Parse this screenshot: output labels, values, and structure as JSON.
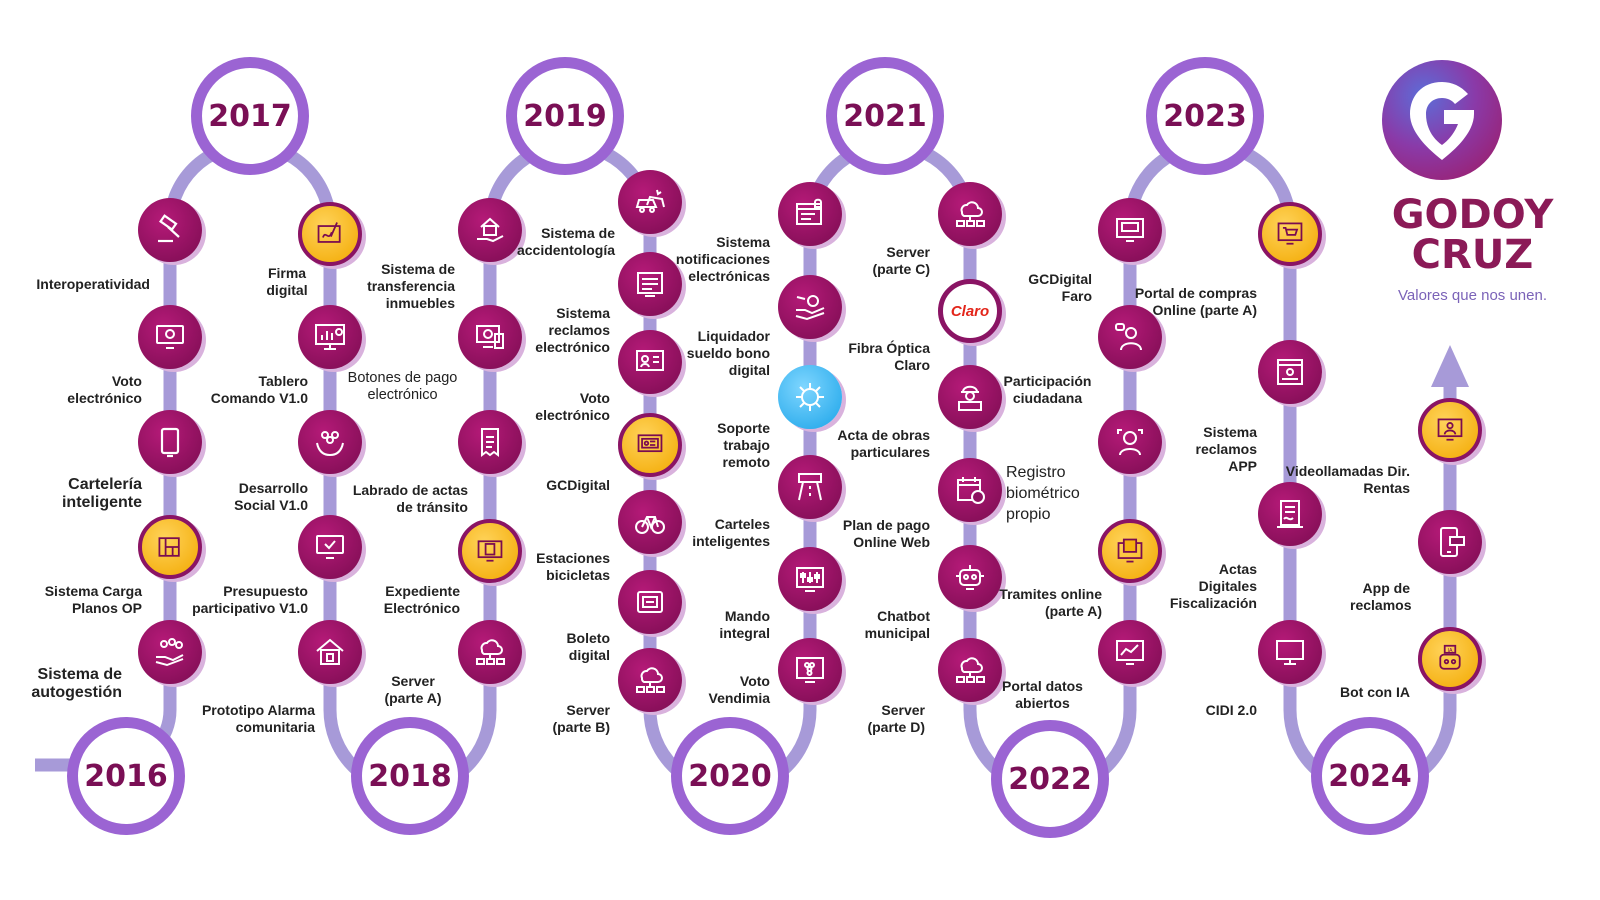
{
  "years": [
    "2016",
    "2017",
    "2018",
    "2019",
    "2020",
    "2021",
    "2022",
    "2023",
    "2024"
  ],
  "logo": {
    "name_line1": "GODOY",
    "name_line2": "CRUZ",
    "tagline": "Valores que nos unen."
  },
  "colors": {
    "track": "#a79ad8",
    "year_ring": "#9b64d3",
    "year_text": "#7a0f55",
    "node_magenta": "#8d1260",
    "node_yellow": "#f5b20e",
    "node_blue": "#2aaae8",
    "brand": "#8b1a57"
  },
  "milestones": {
    "m1": "Sistema de autogestión",
    "m2": "Sistema Carga Planos OP",
    "m3": "Cartelería inteligente",
    "m4": "Voto electrónico",
    "m5": "Interoperatividad",
    "m6": "Firma digital",
    "m7": "Tablero Comando V1.0",
    "m8": "Desarrollo Social V1.0",
    "m9": "Presupuesto participativo V1.0",
    "m10": "Prototipo Alarma comunitaria",
    "m11": "Server (parte A)",
    "m12": "Expediente Electrónico",
    "m13": "Labrado de actas de tránsito",
    "m14": "Botones de pago electrónico",
    "m15": "Sistema de transferencia inmuebles",
    "m16": "Sistema de accidentología",
    "m17": "Sistema reclamos electrónico",
    "m18": "Voto electrónico",
    "m19": "GCDigital",
    "m20": "Estaciones bicicletas",
    "m21": "Boleto digital",
    "m22": "Server (parte B)",
    "m23": "Voto Vendimia",
    "m24": "Mando integral",
    "m25": "Carteles inteligentes",
    "m26": "Soporte trabajo remoto",
    "m27": "Liquidador sueldo bono digital",
    "m28": "Sistema notificaciones electrónicas",
    "m29": "Server (parte C)",
    "m30": "Fibra Óptica Claro",
    "m31": "Acta de obras particulares",
    "m32": "Plan de pago Online Web",
    "m33": "Chatbot municipal",
    "m34": "Server (parte D)",
    "m35": "Portal datos abiertos",
    "m36": "Tramites online (parte A)",
    "m37": "Registro biométrico propio",
    "m38": "Participación ciudadana",
    "m39": "GCDigital Faro",
    "m40": "Portal de compras Online (parte A)",
    "m41": "Sistema reclamos APP",
    "m42": "Actas Digitales Fiscalización",
    "m43": "CIDI 2.0",
    "m44": "Bot con IA",
    "m45": "App de reclamos",
    "m46": "Videollamadas Dir. Rentas"
  },
  "claro_text": "Claro",
  "ia_text": "IA"
}
